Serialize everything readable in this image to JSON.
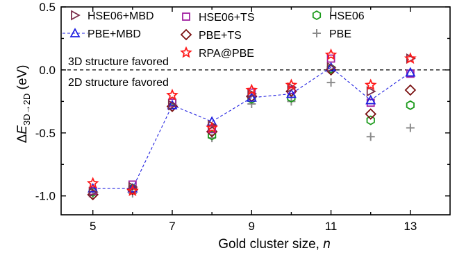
{
  "chart_data": {
    "type": "scatter",
    "xlabel": {
      "prefix": "Gold cluster size, ",
      "italic": "n"
    },
    "ylabel": {
      "delta": "Δ",
      "symbol": "E",
      "subscript": "3D→2D",
      "unit": " (eV)"
    },
    "xlim": [
      4.2,
      14
    ],
    "ylim": [
      -1.15,
      0.5
    ],
    "xticks": [
      5,
      7,
      9,
      11,
      13
    ],
    "yticks": [
      0.5,
      0.0,
      -0.5,
      -1.0
    ],
    "ytick_labels": [
      "0.5",
      "0.0",
      "-0.5",
      "-1.0"
    ],
    "reference_line": {
      "y": 0,
      "style": "dashed"
    },
    "annotations": {
      "above": "3D structure favored",
      "below": "2D structure favored"
    },
    "legend_placement": "top",
    "series": [
      {
        "name": "HSE06+MBD",
        "marker": "triangle-right",
        "color": "#7b2d4a",
        "x": [
          5,
          6,
          7,
          8,
          9,
          10,
          11,
          12,
          13
        ],
        "y": [
          -0.97,
          -0.93,
          -0.28,
          -0.44,
          -0.19,
          -0.14,
          0.02,
          -0.17,
          0.09
        ]
      },
      {
        "name": "PBE+MBD",
        "marker": "triangle-up",
        "color": "#1f1fe0",
        "line": "dashed",
        "x": [
          5,
          6,
          7,
          8,
          9,
          10,
          11,
          12,
          13
        ],
        "y": [
          -0.94,
          -0.94,
          -0.28,
          -0.41,
          -0.22,
          -0.19,
          0.02,
          -0.24,
          -0.02
        ]
      },
      {
        "name": "HSE06+TS",
        "marker": "square",
        "color": "#a020a0",
        "x": [
          5,
          6,
          7,
          8,
          9,
          10,
          11,
          12,
          13
        ],
        "y": [
          -0.96,
          -0.91,
          -0.26,
          -0.47,
          -0.18,
          -0.16,
          0.09,
          -0.26,
          -0.03
        ]
      },
      {
        "name": "PBE+TS",
        "marker": "diamond",
        "color": "#7a1010",
        "x": [
          5,
          6,
          7,
          8,
          9,
          10,
          11,
          12,
          13
        ],
        "y": [
          -0.99,
          -0.95,
          -0.29,
          -0.49,
          -0.21,
          -0.17,
          0.0,
          -0.35,
          -0.16
        ]
      },
      {
        "name": "RPA@PBE",
        "marker": "star",
        "color": "#ff1a1a",
        "x": [
          5,
          6,
          7,
          8,
          9,
          10,
          11,
          12,
          13
        ],
        "y": [
          -0.9,
          -0.96,
          -0.2,
          -0.46,
          -0.16,
          -0.12,
          0.12,
          -0.12,
          0.09
        ]
      },
      {
        "name": "HSE06",
        "marker": "hexagon",
        "color": "#1a9a1a",
        "x": [
          5,
          6,
          7,
          8,
          9,
          10,
          11,
          12,
          13
        ],
        "y": [
          -0.97,
          -0.94,
          -0.25,
          -0.52,
          -0.23,
          -0.22,
          0.01,
          -0.4,
          -0.28
        ]
      },
      {
        "name": "PBE",
        "marker": "plus",
        "color": "#8a8a8a",
        "x": [
          5,
          6,
          7,
          8,
          9,
          10,
          11,
          12,
          13
        ],
        "y": [
          -0.99,
          -0.98,
          -0.28,
          -0.54,
          -0.27,
          -0.25,
          -0.1,
          -0.53,
          -0.46
        ]
      }
    ]
  }
}
